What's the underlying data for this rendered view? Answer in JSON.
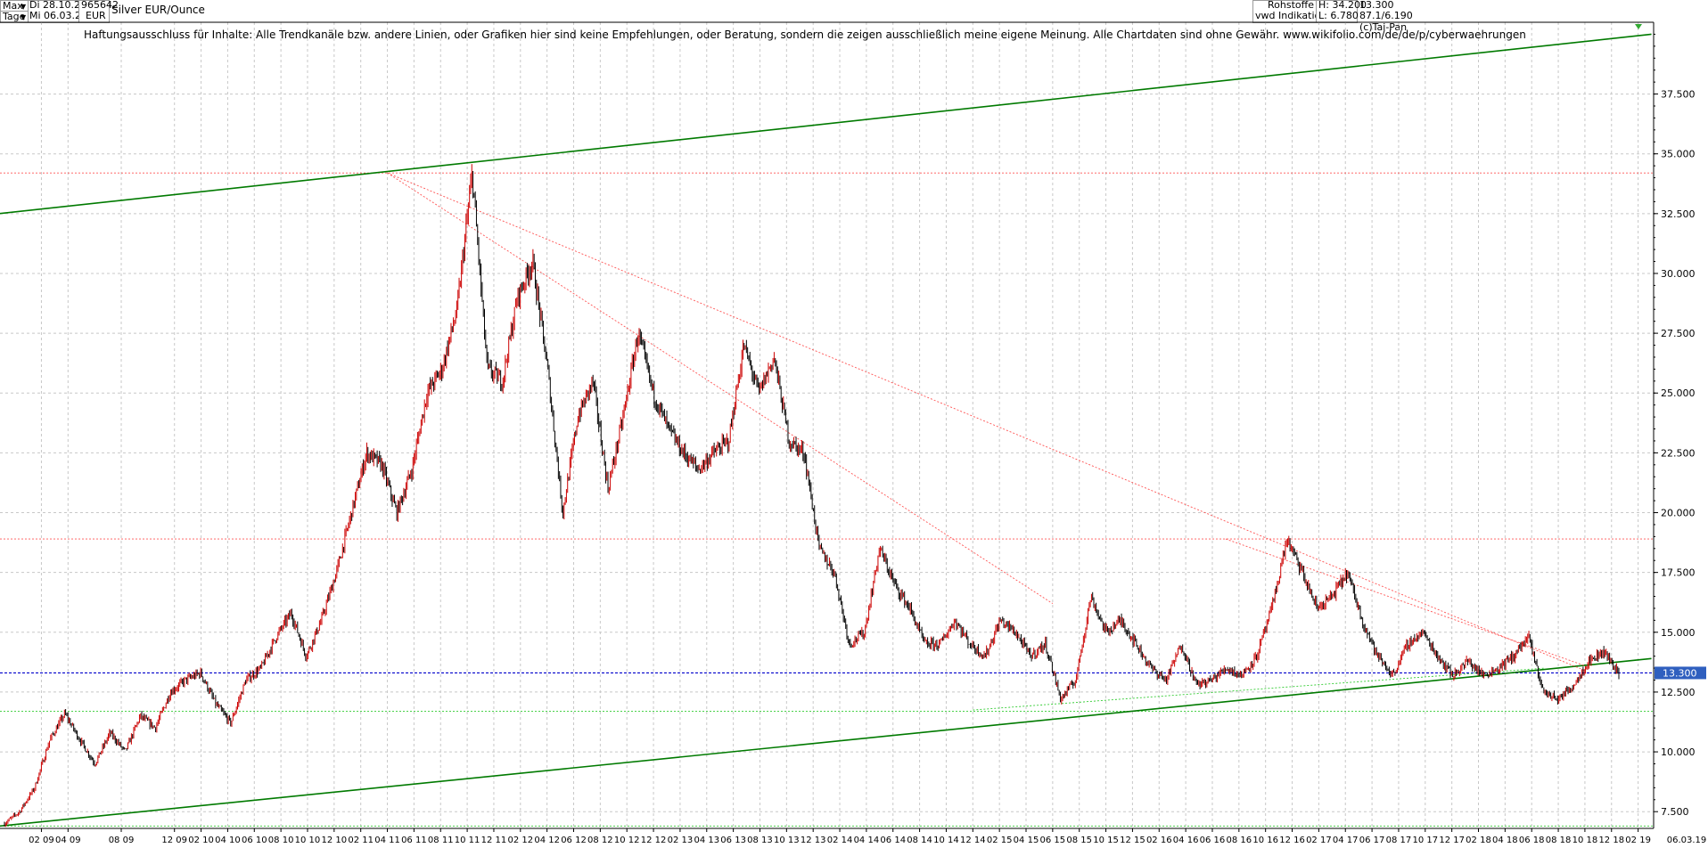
{
  "header": {
    "range": "Max",
    "interval": "Tage",
    "date_from": "Di 28.10.2008",
    "date_to": "Mi 06.03.2019",
    "wkn": "965642",
    "currency": "EUR",
    "title": "Silver EUR/Ounce",
    "source1": "Rohstoffe",
    "source2": "vwd Indikationen",
    "high": "H: 34.200",
    "low": "L: 6.780",
    "last": "13.300",
    "ratio": "87.1/6.190",
    "copyright": "(c)Tai-Pan"
  },
  "disclaimer": "Haftungsausschluss für Inhalte: Alle Trendkanäle bzw. andere Linien, oder Grafiken hier sind keine Empfehlungen, oder Beratung, sondern die zeigen ausschließlich meine eigene Meinung. Alle Chartdaten sind ohne Gewähr.  www.wikifolio.com/de/de/p/cyberwaehrungen",
  "colors": {
    "candle_down": "#000000",
    "candle_up": "#cc0000",
    "trend_channel": "#007a00",
    "support_lines": "#33cc33",
    "resistance_lines": "#ff5555",
    "last_price_line": "#0000cc",
    "last_price_badge": "#2f5fbf",
    "grid": "#c8c8c8"
  },
  "chart_data": {
    "type": "line",
    "title": "Silver EUR/Ounce",
    "xlabel": "",
    "ylabel": "",
    "ylim": [
      6.8,
      40.5
    ],
    "grid": true,
    "legend": "none",
    "y_ticks": [
      "7.500",
      "10.000",
      "12.500",
      "15.000",
      "17.500",
      "20.000",
      "22.500",
      "25.000",
      "27.500",
      "30.000",
      "32.500",
      "35.000",
      "37.500"
    ],
    "x_tick_labels": [
      "02 09",
      "04 09",
      "08 09",
      "12 09",
      "02 10",
      "04 10",
      "06 10",
      "08 10",
      "10 10",
      "12 10",
      "02 11",
      "04 11",
      "06 11",
      "08 11",
      "10 11",
      "12 11",
      "02 12",
      "04 12",
      "06 12",
      "08 12",
      "10 12",
      "12 12",
      "02 13",
      "04 13",
      "06 13",
      "08 13",
      "10 13",
      "12 13",
      "02 14",
      "04 14",
      "06 14",
      "08 14",
      "10 14",
      "12 14",
      "02 15",
      "04 15",
      "06 15",
      "08 15",
      "10 15",
      "12 15",
      "02 16",
      "04 16",
      "06 16",
      "08 16",
      "10 16",
      "12 16",
      "02 17",
      "04 17",
      "06 17",
      "08 17",
      "10 17",
      "12 17",
      "02 18",
      "04 18",
      "06 18",
      "08 18",
      "10 18",
      "12 18",
      "02 19"
    ],
    "x_end_label": "06.03.19",
    "last_value": 13.3,
    "last_label": "13.300",
    "series": [
      {
        "values": [
          7.0,
          7.5,
          8.5,
          10.5,
          11.6,
          10.5,
          9.5,
          10.8,
          10.0,
          11.5,
          11.0,
          12.5,
          13.0,
          13.3,
          12.0,
          11.2,
          13.0,
          13.5,
          14.8,
          15.8,
          14.0,
          15.5,
          17.5,
          20.0,
          22.5,
          22.0,
          20.0,
          21.8,
          25.0,
          26.0,
          28.5,
          34.2,
          26.0,
          25.5,
          29.0,
          30.5,
          26.0,
          20.0,
          24.0,
          25.5,
          21.0,
          24.0,
          27.5,
          25.0,
          23.5,
          22.5,
          21.8,
          22.5,
          23.0,
          27.0,
          25.0,
          26.5,
          23.0,
          22.5,
          18.5,
          17.5,
          14.5,
          15.0,
          18.5,
          17.0,
          16.0,
          14.5,
          14.5,
          15.5,
          14.5,
          14.0,
          15.5,
          15.0,
          14.0,
          14.5,
          12.2,
          13.0,
          16.5,
          15.0,
          15.5,
          14.5,
          13.5,
          13.0,
          14.5,
          12.8,
          13.0,
          13.5,
          13.2,
          14.0,
          16.0,
          18.9,
          17.5,
          16.0,
          16.5,
          17.5,
          15.5,
          14.0,
          13.2,
          14.5,
          15.0,
          14.0,
          13.2,
          13.8,
          13.2,
          13.5,
          14.0,
          14.8,
          12.5,
          12.2,
          12.8,
          13.8,
          14.2,
          13.3
        ]
      }
    ],
    "lines": [
      {
        "role": "upper channel",
        "x": [
          "10.2008",
          "03.2019"
        ],
        "y": [
          32.45,
          40.0
        ]
      },
      {
        "role": "upper channel touch",
        "x": [
          "04.2011",
          "04.2011"
        ],
        "y": [
          34.2,
          34.2
        ]
      },
      {
        "role": "lower channel",
        "x": [
          "10.2008",
          "03.2019"
        ],
        "y": [
          6.85,
          13.9
        ]
      },
      {
        "role": "support",
        "x": [
          "12.2014",
          "07.2018"
        ],
        "y": [
          11.75,
          13.5
        ]
      },
      {
        "role": "resistance",
        "x": [
          "04.2011",
          "06.2015"
        ],
        "y": [
          34.2,
          16.2
        ]
      },
      {
        "role": "resistance",
        "x": [
          "04.2011",
          "10.2018"
        ],
        "y": [
          34.2,
          13.4
        ]
      },
      {
        "role": "resistance",
        "x": [
          "07.2016",
          "10.2018"
        ],
        "y": [
          18.9,
          13.6
        ]
      },
      {
        "role": "horizontal resistance",
        "y": 34.2
      },
      {
        "role": "horizontal resistance",
        "y": 18.9
      },
      {
        "role": "horizontal support",
        "y": 11.7
      },
      {
        "role": "horizontal support",
        "y": 6.9
      }
    ]
  }
}
